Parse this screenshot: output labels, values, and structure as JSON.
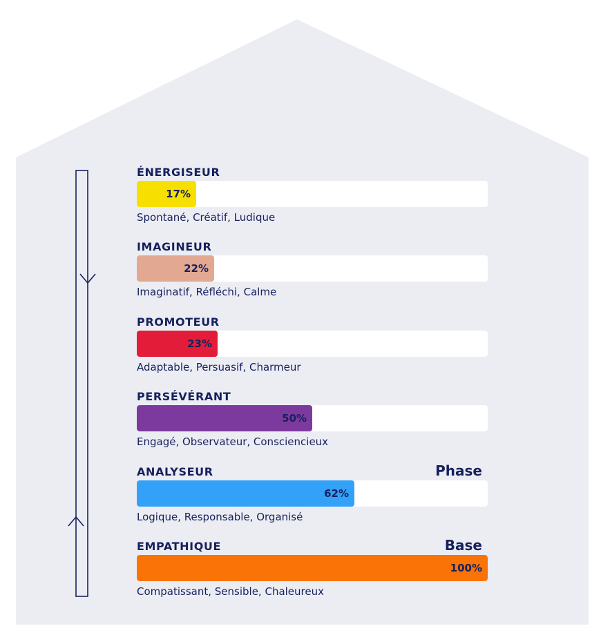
{
  "colors": {
    "background": "#ecedf3",
    "text": "#16215c",
    "track": "#ffffff"
  },
  "chart_data": {
    "type": "bar",
    "orientation": "horizontal",
    "xlim": [
      0,
      100
    ],
    "unit": "%",
    "categories": [
      "ÉNERGISEUR",
      "IMAGINEUR",
      "PROMOTEUR",
      "PERSÉVÉRANT",
      "ANALYSEUR",
      "EMPATHIQUE"
    ],
    "values": [
      17,
      22,
      23,
      50,
      62,
      100
    ],
    "value_labels": [
      "17%",
      "22%",
      "23%",
      "50%",
      "62%",
      "100%"
    ],
    "bar_colors": [
      "#f7e000",
      "#e3a891",
      "#e31c3a",
      "#7d3a9e",
      "#33a1f8",
      "#f97306"
    ],
    "descriptions": [
      "Spontané, Créatif, Ludique",
      "Imaginatif, Réfléchi, Calme",
      "Adaptable, Persuasif, Charmeur",
      "Engagé, Observateur, Consciencieux",
      "Logique, Responsable, Organisé",
      "Compatissant, Sensible, Chaleureux"
    ],
    "tags": [
      "",
      "",
      "",
      "",
      "Phase",
      "Base"
    ]
  }
}
